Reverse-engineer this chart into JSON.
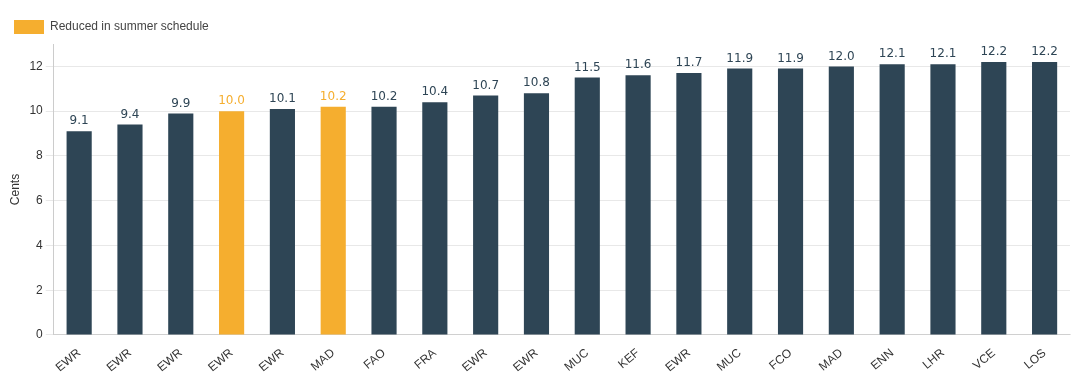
{
  "chart_data": {
    "type": "bar",
    "ylabel": "Cents",
    "categories": [
      "EWR",
      "EWR",
      "EWR",
      "EWR",
      "EWR",
      "MAD",
      "FAO",
      "FRA",
      "EWR",
      "EWR",
      "MUC",
      "KEF",
      "EWR",
      "MUC",
      "FCO",
      "MAD",
      "ENN",
      "LHR",
      "VCE",
      "LOS"
    ],
    "series": [
      {
        "color": "#2e4555",
        "values": [
          9.1,
          9.4,
          9.9,
          null,
          10.1,
          null,
          10.2,
          10.4,
          10.7,
          10.8,
          11.5,
          11.6,
          11.7,
          11.9,
          11.9,
          12.0,
          12.1,
          12.1,
          12.2,
          12.2
        ],
        "value_labels": [
          "9.1",
          "9.4",
          "9.9",
          null,
          "10.1",
          null,
          "10.2",
          "10.4",
          "10.7",
          "10.8",
          "11.5",
          "11.6",
          "11.7",
          "11.9",
          "11.9",
          "12.0",
          "12.1",
          "12.1",
          "12.2",
          "12.2"
        ]
      },
      {
        "name": "Reduced in summer schedule",
        "color": "#f5ae2f",
        "values": [
          null,
          null,
          null,
          10.0,
          null,
          10.2,
          null,
          null,
          null,
          null,
          null,
          null,
          null,
          null,
          null,
          null,
          null,
          null,
          null,
          null
        ],
        "value_labels": [
          null,
          null,
          null,
          "10.0",
          null,
          "10.2",
          null,
          null,
          null,
          null,
          null,
          null,
          null,
          null,
          null,
          null,
          null,
          null,
          null,
          null
        ]
      }
    ],
    "ylim": [
      0,
      13
    ],
    "yticks": [
      0,
      2,
      4,
      6,
      8,
      10,
      12
    ],
    "grid": "y",
    "legend": "top left"
  }
}
